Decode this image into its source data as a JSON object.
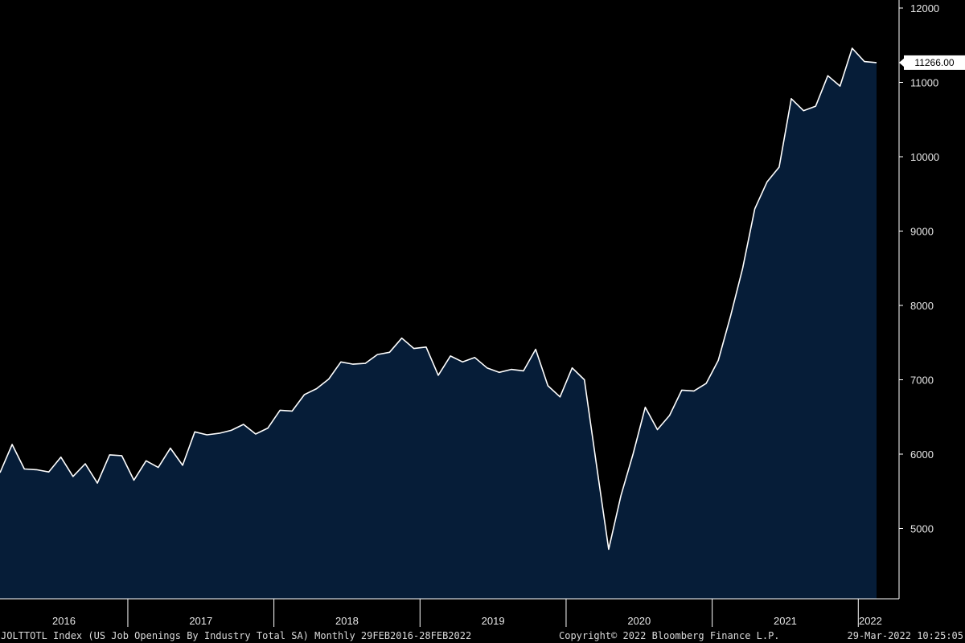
{
  "chart_data": {
    "type": "area",
    "x": [
      "2016-02",
      "2016-03",
      "2016-04",
      "2016-05",
      "2016-06",
      "2016-07",
      "2016-08",
      "2016-09",
      "2016-10",
      "2016-11",
      "2016-12",
      "2017-01",
      "2017-02",
      "2017-03",
      "2017-04",
      "2017-05",
      "2017-06",
      "2017-07",
      "2017-08",
      "2017-09",
      "2017-10",
      "2017-11",
      "2017-12",
      "2018-01",
      "2018-02",
      "2018-03",
      "2018-04",
      "2018-05",
      "2018-06",
      "2018-07",
      "2018-08",
      "2018-09",
      "2018-10",
      "2018-11",
      "2018-12",
      "2019-01",
      "2019-02",
      "2019-03",
      "2019-04",
      "2019-05",
      "2019-06",
      "2019-07",
      "2019-08",
      "2019-09",
      "2019-10",
      "2019-11",
      "2019-12",
      "2020-01",
      "2020-02",
      "2020-03",
      "2020-04",
      "2020-05",
      "2020-06",
      "2020-07",
      "2020-08",
      "2020-09",
      "2020-10",
      "2020-11",
      "2020-12",
      "2021-01",
      "2021-02",
      "2021-03",
      "2021-04",
      "2021-05",
      "2021-06",
      "2021-07",
      "2021-08",
      "2021-09",
      "2021-10",
      "2021-11",
      "2021-12",
      "2022-01",
      "2022-02"
    ],
    "series": [
      {
        "values": [
          5750,
          6130,
          5800,
          5790,
          5760,
          5960,
          5700,
          5870,
          5610,
          5990,
          5980,
          5650,
          5910,
          5820,
          6080,
          5850,
          6300,
          6260,
          6280,
          6320,
          6400,
          6270,
          6350,
          6590,
          6580,
          6800,
          6880,
          7010,
          7240,
          7210,
          7220,
          7340,
          7370,
          7560,
          7420,
          7440,
          7060,
          7320,
          7240,
          7300,
          7160,
          7100,
          7140,
          7120,
          7410,
          6920,
          6770,
          7160,
          7000,
          5850,
          4720,
          5440,
          6000,
          6630,
          6330,
          6520,
          6860,
          6850,
          6950,
          7260,
          7850,
          8500,
          9300,
          9660,
          9860,
          10780,
          10620,
          10680,
          11090,
          10950,
          11460,
          11280,
          11266
        ],
        "color": "#ffffff",
        "fill": "#061d38"
      }
    ],
    "ylim": [
      4000,
      12000
    ],
    "yticks": [
      5000,
      6000,
      7000,
      8000,
      9000,
      10000,
      11000,
      12000
    ],
    "year_labels": [
      "2016",
      "2017",
      "2018",
      "2019",
      "2020",
      "2021",
      "2022"
    ],
    "last_value_label": "11266.00",
    "grid": false,
    "colors": {
      "background": "#000000",
      "fill": "#061d38",
      "line": "#ffffff",
      "axis": "#ffffff",
      "text": "#e6e6e6"
    }
  },
  "footer": {
    "ticker": "JOLTTOTL Index (US Job Openings By Industry Total SA)  Monthly 29FEB2016-28FEB2022",
    "copyright": "Copyright© 2022 Bloomberg Finance L.P.",
    "timestamp": "29-Mar-2022 10:25:05"
  }
}
